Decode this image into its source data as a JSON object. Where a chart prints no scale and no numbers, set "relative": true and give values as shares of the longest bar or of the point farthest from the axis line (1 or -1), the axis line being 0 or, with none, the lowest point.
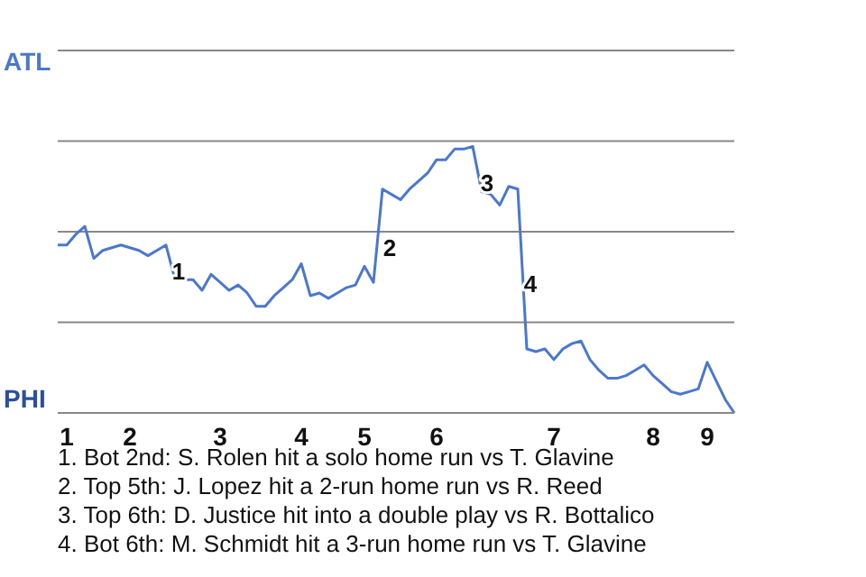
{
  "chart_data": {
    "type": "line",
    "relative": true,
    "categories": [
      null,
      "1",
      null,
      null,
      null,
      null,
      null,
      null,
      "2",
      null,
      null,
      null,
      null,
      null,
      null,
      null,
      null,
      null,
      "3",
      null,
      null,
      null,
      null,
      null,
      null,
      null,
      null,
      "4",
      null,
      null,
      null,
      null,
      null,
      null,
      "5",
      null,
      null,
      null,
      null,
      null,
      null,
      null,
      "6",
      null,
      null,
      null,
      null,
      null,
      null,
      null,
      null,
      null,
      null,
      null,
      null,
      "7",
      null,
      null,
      null,
      null,
      null,
      null,
      null,
      null,
      null,
      null,
      "8",
      null,
      null,
      null,
      null,
      null,
      "9",
      null,
      null,
      null
    ],
    "series": [
      {
        "color": "#4a78d0",
        "values": [
          0.63,
          0.63,
          0.67,
          0.7,
          0.58,
          0.61,
          0.62,
          0.63,
          0.62,
          0.61,
          0.59,
          0.61,
          0.63,
          0.5,
          0.5,
          0.5,
          0.46,
          0.52,
          0.49,
          0.46,
          0.48,
          0.45,
          0.4,
          0.4,
          0.44,
          0.47,
          0.5,
          0.56,
          0.44,
          0.45,
          0.43,
          0.45,
          0.47,
          0.48,
          0.55,
          0.49,
          0.84,
          0.82,
          0.8,
          0.84,
          0.87,
          0.9,
          0.95,
          0.95,
          0.99,
          0.99,
          1,
          0.83,
          0.82,
          0.78,
          0.85,
          0.84,
          0.24,
          0.23,
          0.24,
          0.2,
          0.24,
          0.26,
          0.27,
          0.2,
          0.16,
          0.13,
          0.13,
          0.14,
          0.16,
          0.18,
          0.14,
          0.11,
          0.08,
          0.07,
          0.08,
          0.09,
          0.19,
          0.12,
          0.05,
          0
        ]
      }
    ],
    "ref_lines": [
      {
        "axis": "y",
        "value": 0.34,
        "color": "#888888"
      },
      {
        "axis": "y",
        "value": 0.68,
        "color": "#888888"
      },
      {
        "axis": "y",
        "value": 1.02,
        "color": "#888888"
      },
      {
        "axis": "y",
        "value": 1.36,
        "color": "#888888"
      }
    ],
    "annotations": [
      "ATL",
      "PHI",
      "1",
      "2",
      "3",
      "4",
      "1. Bot 2nd: S. Rolen hit a solo home run vs T. Glavine",
      "2. Top 5th: J. Lopez hit a 2-run home run vs R. Reed",
      "3. Top 6th: D. Justice hit into a double play vs R. Bottalico",
      "4. Bot 6th: M. Schmidt hit a 3-run home run vs T. Glavine"
    ]
  }
}
